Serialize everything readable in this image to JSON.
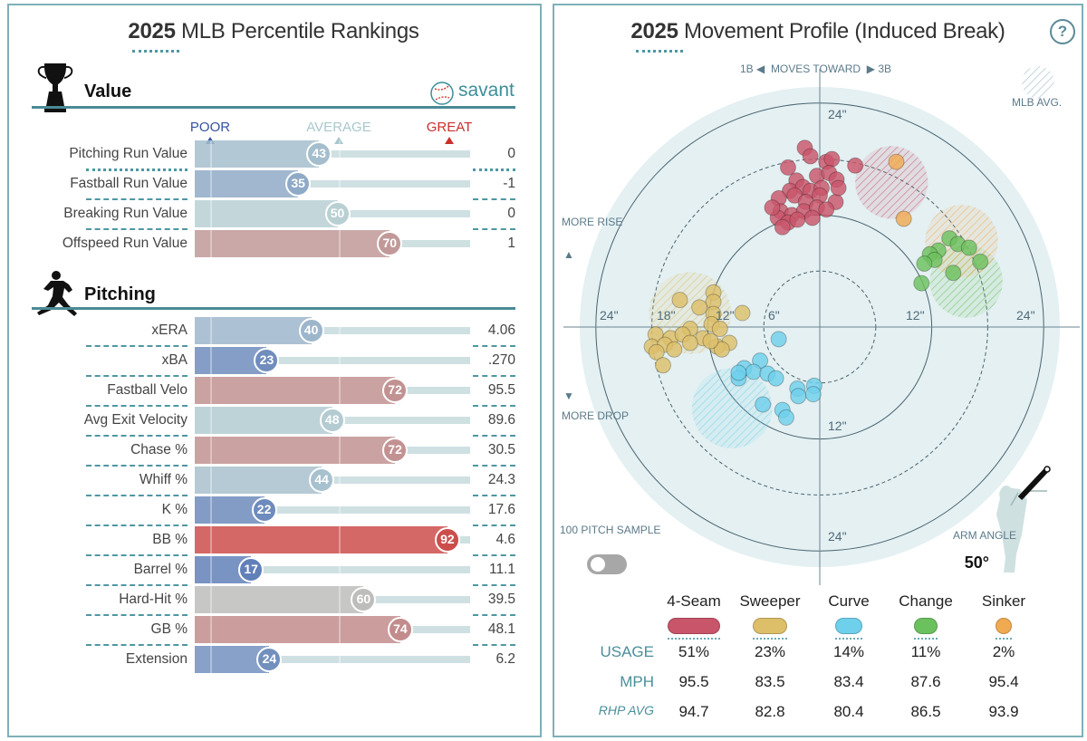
{
  "left": {
    "title_year": "2025",
    "title_rest": "MLB Percentile Rankings",
    "brand": "savant",
    "scale": {
      "poor": "POOR",
      "average": "AVERAGE",
      "great": "GREAT"
    },
    "value_section": {
      "title": "Value",
      "icon": "trophy-icon",
      "rows": [
        {
          "label": "Pitching Run Value",
          "percentile": 43,
          "value": "0"
        },
        {
          "label": "Fastball Run Value",
          "percentile": 35,
          "value": "-1"
        },
        {
          "label": "Breaking Run Value",
          "percentile": 50,
          "value": "0"
        },
        {
          "label": "Offspeed Run Value",
          "percentile": 70,
          "value": "1"
        }
      ]
    },
    "pitching_section": {
      "title": "Pitching",
      "icon": "pitcher-silhouette-icon",
      "rows": [
        {
          "label": "xERA",
          "percentile": 40,
          "value": "4.06"
        },
        {
          "label": "xBA",
          "percentile": 23,
          "value": ".270"
        },
        {
          "label": "Fastball Velo",
          "percentile": 72,
          "value": "95.5"
        },
        {
          "label": "Avg Exit Velocity",
          "percentile": 48,
          "value": "89.6"
        },
        {
          "label": "Chase %",
          "percentile": 72,
          "value": "30.5"
        },
        {
          "label": "Whiff %",
          "percentile": 44,
          "value": "24.3"
        },
        {
          "label": "K %",
          "percentile": 22,
          "value": "17.6"
        },
        {
          "label": "BB %",
          "percentile": 92,
          "value": "4.6"
        },
        {
          "label": "Barrel %",
          "percentile": 17,
          "value": "11.1"
        },
        {
          "label": "Hard-Hit %",
          "percentile": 60,
          "value": "39.5"
        },
        {
          "label": "GB %",
          "percentile": 74,
          "value": "48.1"
        },
        {
          "label": "Extension",
          "percentile": 24,
          "value": "6.2"
        }
      ]
    },
    "colors": {
      "poor": "#3d5fae",
      "average": "#b9d0d3",
      "great": "#d0312d",
      "neutral": "#bdbdbb"
    }
  },
  "chart_data": {
    "type": "scatter",
    "title_year": "2025",
    "title_rest": "Movement Profile (Induced Break)",
    "help": "?",
    "direction_label": {
      "left": "1B",
      "middle": "MOVES TOWARD",
      "right": "3B"
    },
    "rise_label": "MORE RISE",
    "drop_label": "MORE DROP",
    "mlb_avg_label": "MLB AVG.",
    "sample_label": "100 PITCH SAMPLE",
    "sample_toggle_on": false,
    "arm_angle_label": "ARM ANGLE",
    "arm_angle": "50°",
    "ring_labels": {
      "top24": "24\"",
      "bottom12": "12\"",
      "bottom24": "24\"",
      "left24": "24\"",
      "left18": "18\"",
      "left12": "12\"",
      "left6": "6\"",
      "right12": "12\"",
      "right24": "24\""
    },
    "rings_in": [
      6,
      12,
      18,
      24
    ],
    "xlim": [
      -24,
      24
    ],
    "ylim": [
      -24,
      24
    ],
    "series": [
      {
        "name": "4-Seam",
        "color": "#c9556a",
        "usage": "51%",
        "mph": "95.5",
        "rhp_avg": "94.7",
        "mlb_avg": {
          "x": 7.7,
          "y": 15.5,
          "r": 3.9
        },
        "points": [
          [
            -1.6,
            19.2
          ],
          [
            -1.0,
            18.3
          ],
          [
            -3.4,
            17.1
          ],
          [
            0.7,
            17.7
          ],
          [
            1.3,
            18.0
          ],
          [
            3.8,
            17.3
          ],
          [
            -2.5,
            15.7
          ],
          [
            -0.3,
            16.2
          ],
          [
            1.0,
            16.5
          ],
          [
            1.8,
            15.8
          ],
          [
            -3.2,
            14.6
          ],
          [
            -1.8,
            15.0
          ],
          [
            -1.0,
            14.6
          ],
          [
            0.2,
            14.9
          ],
          [
            -4.4,
            13.8
          ],
          [
            -2.7,
            14.1
          ],
          [
            -1.5,
            13.4
          ],
          [
            0.0,
            14.1
          ],
          [
            1.7,
            13.4
          ],
          [
            -4.2,
            12.4
          ],
          [
            -3.0,
            12.0
          ],
          [
            -1.7,
            12.4
          ],
          [
            -0.3,
            12.8
          ],
          [
            -4.5,
            11.7
          ],
          [
            -3.4,
            11.2
          ],
          [
            -2.4,
            11.5
          ],
          [
            -0.8,
            11.7
          ],
          [
            -4.0,
            10.7
          ],
          [
            2.0,
            14.9
          ],
          [
            0.7,
            12.6
          ],
          [
            -5.1,
            12.8
          ]
        ]
      },
      {
        "name": "Sweeper",
        "color": "#ddbf6a",
        "usage": "23%",
        "mph": "83.5",
        "rhp_avg": "82.8",
        "mlb_avg": {
          "x": -13.9,
          "y": 1.5,
          "r": 4.4
        },
        "points": [
          [
            -11.4,
            3.7
          ],
          [
            -11.4,
            2.7
          ],
          [
            -15.0,
            2.9
          ],
          [
            -12.9,
            2.1
          ],
          [
            -11.4,
            1.4
          ],
          [
            -11.6,
            0.3
          ],
          [
            -8.3,
            1.5
          ],
          [
            -13.9,
            -0.2
          ],
          [
            -17.6,
            -0.8
          ],
          [
            -16.0,
            -1.2
          ],
          [
            -14.7,
            -0.8
          ],
          [
            -12.5,
            -1.2
          ],
          [
            -10.7,
            -0.2
          ],
          [
            -9.7,
            -1.7
          ],
          [
            -11.0,
            -2.1
          ],
          [
            -18.0,
            -2.1
          ],
          [
            -16.6,
            -1.9
          ],
          [
            -15.6,
            -2.4
          ],
          [
            -13.9,
            -1.7
          ],
          [
            -17.5,
            -2.7
          ],
          [
            -16.8,
            -4.1
          ],
          [
            -10.5,
            -2.4
          ],
          [
            -11.7,
            -1.5
          ]
        ]
      },
      {
        "name": "Curve",
        "color": "#6fd0ec",
        "usage": "14%",
        "mph": "83.4",
        "rhp_avg": "80.4",
        "mlb_avg": {
          "x": -9.4,
          "y": -8.7,
          "r": 4.3
        },
        "points": [
          [
            -4.4,
            -1.3
          ],
          [
            -6.4,
            -3.6
          ],
          [
            -8.1,
            -4.4
          ],
          [
            -7.1,
            -4.8
          ],
          [
            -5.6,
            -5.0
          ],
          [
            -4.7,
            -5.5
          ],
          [
            -8.7,
            -5.5
          ],
          [
            -2.4,
            -6.6
          ],
          [
            -0.6,
            -6.3
          ],
          [
            -2.3,
            -7.4
          ],
          [
            -0.7,
            -7.2
          ],
          [
            -6.1,
            -8.3
          ],
          [
            -4.0,
            -8.9
          ],
          [
            -3.6,
            -9.7
          ],
          [
            -8.7,
            -4.9
          ]
        ]
      },
      {
        "name": "Change",
        "color": "#6cc15f",
        "usage": "11%",
        "mph": "87.6",
        "rhp_avg": "86.5",
        "mlb_avg": {
          "x": 15.7,
          "y": 4.9,
          "r": 3.9
        },
        "points": [
          [
            13.9,
            9.5
          ],
          [
            14.8,
            8.9
          ],
          [
            16.0,
            8.5
          ],
          [
            12.7,
            8.2
          ],
          [
            11.8,
            7.8
          ],
          [
            12.3,
            7.2
          ],
          [
            17.2,
            7.0
          ],
          [
            14.3,
            5.8
          ],
          [
            11.2,
            6.8
          ],
          [
            10.9,
            4.7
          ]
        ]
      },
      {
        "name": "Sinker",
        "color": "#f0aa52",
        "usage": "2%",
        "mph": "95.4",
        "rhp_avg": "93.9",
        "mlb_avg": {
          "x": 15.2,
          "y": 9.2,
          "r": 3.9
        },
        "points": [
          [
            8.2,
            17.7
          ],
          [
            9.0,
            11.6
          ]
        ]
      }
    ],
    "table_rows": {
      "usage": "USAGE",
      "mph": "MPH",
      "rhp_avg": "RHP AVG"
    }
  }
}
